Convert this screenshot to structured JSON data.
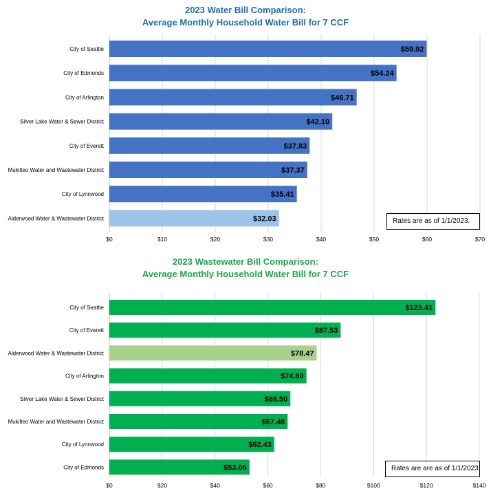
{
  "chart_data": [
    {
      "type": "bar",
      "orientation": "horizontal",
      "title_line1": "2023 Water Bill Comparison:",
      "title_line2": "Average Monthly Household Water Bill for 7 CCF",
      "categories": [
        "City of Seattle",
        "City of Edmonds",
        "City of Arlington",
        "Silver Lake Water & Sewer District",
        "City of Everett",
        "Mukilteo Water and Wastewater District",
        "City of Lynnwood",
        "Alderwood Water & Wastewater District"
      ],
      "values": [
        59.92,
        54.24,
        46.71,
        42.1,
        37.83,
        37.37,
        35.41,
        32.03
      ],
      "data_labels": [
        "$59.92",
        "$54.24",
        "$46.71",
        "$42.10",
        "$37.83",
        "$37.37",
        "$35.41",
        "$32.03"
      ],
      "xlim": [
        0,
        70
      ],
      "x_ticks": [
        0,
        10,
        20,
        30,
        40,
        50,
        60,
        70
      ],
      "x_tick_labels": [
        "$0",
        "$10",
        "$20",
        "$30",
        "$40",
        "$50",
        "$60",
        "$70"
      ],
      "bar_color": "#4472c4",
      "highlight_color": "#9dc3e6",
      "highlight_category": "Alderwood Water & Wastewater District",
      "grid": true,
      "note": "Rates are as of 1/1/2023."
    },
    {
      "type": "bar",
      "orientation": "horizontal",
      "title_line1": "2023 Wastewater Bill Comparison:",
      "title_line2": "Average Monthly Household Water Bill for 7 CCF",
      "categories": [
        "City of Seattle",
        "City of Everett",
        "Alderwood Water & Wastewater District",
        "City of Arlington",
        "Silver Lake Water & Sewer District",
        "Mukilteo Water and Wastewater District",
        "City of Lynnwood",
        "City of Edmonds"
      ],
      "values": [
        123.41,
        87.53,
        78.47,
        74.6,
        68.5,
        67.48,
        62.43,
        53.06
      ],
      "data_labels": [
        "$123.41",
        "$87.53",
        "$78.47",
        "$74.60",
        "$68.50",
        "$67.48",
        "$62.43",
        "$53.06"
      ],
      "xlim": [
        0,
        140
      ],
      "x_ticks": [
        0,
        20,
        40,
        60,
        80,
        100,
        120,
        140
      ],
      "x_tick_labels": [
        "$0",
        "$20",
        "$40",
        "$60",
        "$80",
        "$100",
        "$120",
        "$140"
      ],
      "bar_color": "#00b050",
      "highlight_color": "#a9d18e",
      "highlight_category": "Alderwood Water & Wastewater District",
      "grid": true,
      "note": "Rates are are as of 1/1/2023."
    }
  ]
}
